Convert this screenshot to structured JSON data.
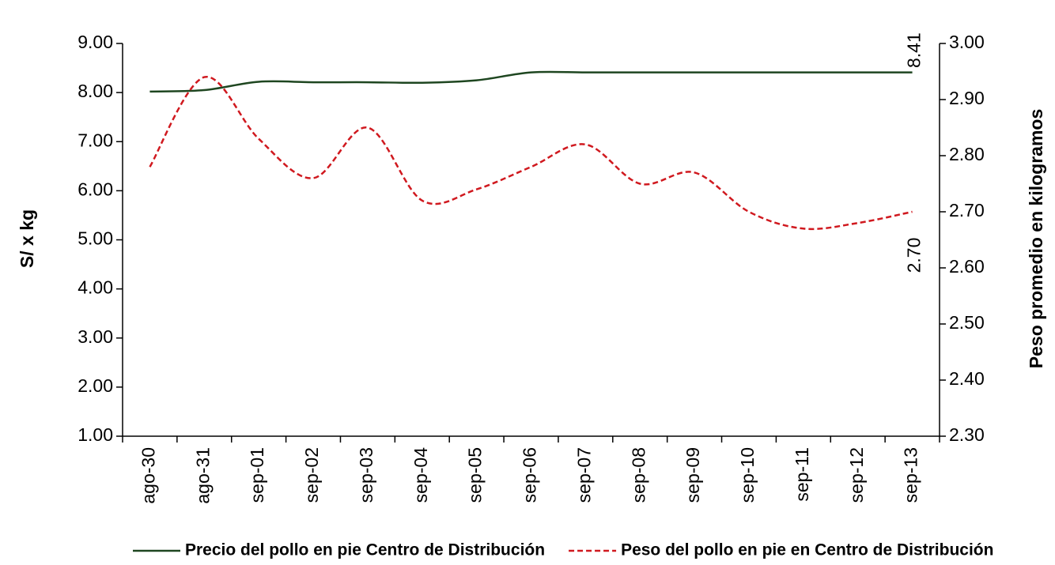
{
  "chart_data": {
    "type": "line",
    "y_label": "S/  x  kg",
    "y2_label": "Peso promedio en kilogramos",
    "categories": [
      "ago-30",
      "ago-31",
      "sep-01",
      "sep-02",
      "sep-03",
      "sep-04",
      "sep-05",
      "sep-06",
      "sep-07",
      "sep-08",
      "sep-09",
      "sep-10",
      "sep-11",
      "sep-12",
      "sep-13"
    ],
    "series": [
      {
        "name": "Precio del pollo en pie Centro de Distribución",
        "color": "#1e4620",
        "dash": false,
        "values": [
          8.02,
          8.05,
          8.22,
          8.21,
          8.21,
          8.2,
          8.25,
          8.41,
          8.41,
          8.41,
          8.41,
          8.41,
          8.41,
          8.41,
          8.41
        ],
        "value_labels": [
          null,
          null,
          null,
          null,
          null,
          null,
          null,
          null,
          null,
          null,
          null,
          null,
          null,
          null,
          "8.41"
        ]
      },
      {
        "name": "Peso del pollo en pie en Centro de Distribución",
        "color": "#d0191f",
        "dash": true,
        "axis": "y2",
        "values": [
          2.78,
          2.94,
          2.83,
          2.76,
          2.85,
          2.72,
          2.74,
          2.78,
          2.82,
          2.75,
          2.77,
          2.7,
          2.67,
          2.68,
          2.7
        ],
        "value_labels": [
          null,
          null,
          null,
          null,
          null,
          null,
          null,
          null,
          null,
          null,
          null,
          null,
          null,
          null,
          "2.70"
        ]
      }
    ],
    "ylim": [
      1,
      9
    ],
    "yticks": [
      {
        "value": 1,
        "label": "1.00"
      },
      {
        "value": 2,
        "label": "2.00"
      },
      {
        "value": 3,
        "label": "3.00"
      },
      {
        "value": 4,
        "label": "4.00"
      },
      {
        "value": 5,
        "label": "5.00"
      },
      {
        "value": 6,
        "label": "6.00"
      },
      {
        "value": 7,
        "label": "7.00"
      },
      {
        "value": 8,
        "label": "8.00"
      },
      {
        "value": 9,
        "label": "9.00"
      }
    ],
    "y2lim": [
      2.3,
      3.0
    ],
    "y2ticks": [
      {
        "value": 2.3,
        "label": "2.30"
      },
      {
        "value": 2.4,
        "label": "2.40"
      },
      {
        "value": 2.5,
        "label": "2.50"
      },
      {
        "value": 2.6,
        "label": "2.60"
      },
      {
        "value": 2.7,
        "label": "2.70"
      },
      {
        "value": 2.8,
        "label": "2.80"
      },
      {
        "value": 2.9,
        "label": "2.90"
      },
      {
        "value": 3.0,
        "label": "3.00"
      }
    ],
    "grid": false,
    "legend": "bottom"
  }
}
